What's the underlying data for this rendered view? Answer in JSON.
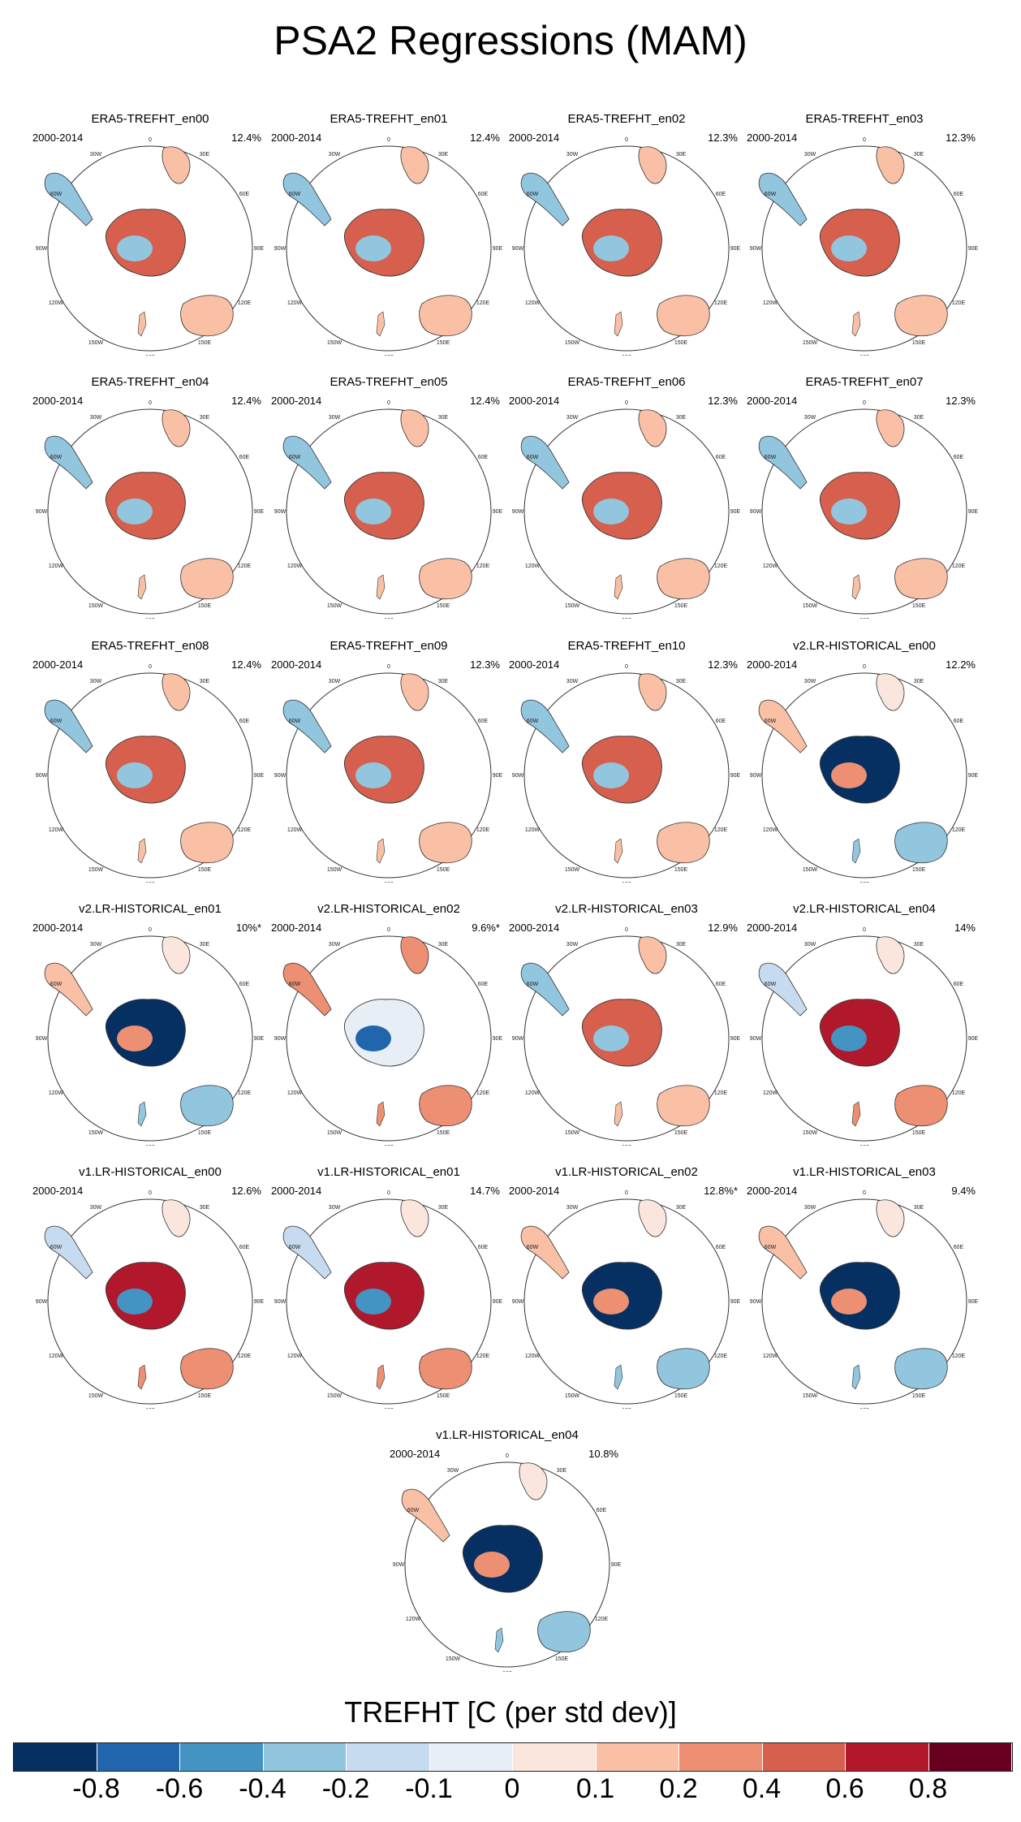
{
  "title": "PSA2 Regressions (MAM)",
  "period": "2000-2014",
  "panels": [
    {
      "title": "ERA5-TREFHT_en00",
      "pct": "12.4%",
      "style": "era"
    },
    {
      "title": "ERA5-TREFHT_en01",
      "pct": "12.4%",
      "style": "era"
    },
    {
      "title": "ERA5-TREFHT_en02",
      "pct": "12.3%",
      "style": "era"
    },
    {
      "title": "ERA5-TREFHT_en03",
      "pct": "12.3%",
      "style": "era"
    },
    {
      "title": "ERA5-TREFHT_en04",
      "pct": "12.4%",
      "style": "era"
    },
    {
      "title": "ERA5-TREFHT_en05",
      "pct": "12.4%",
      "style": "era"
    },
    {
      "title": "ERA5-TREFHT_en06",
      "pct": "12.3%",
      "style": "era"
    },
    {
      "title": "ERA5-TREFHT_en07",
      "pct": "12.3%",
      "style": "era"
    },
    {
      "title": "ERA5-TREFHT_en08",
      "pct": "12.4%",
      "style": "era"
    },
    {
      "title": "ERA5-TREFHT_en09",
      "pct": "12.3%",
      "style": "era"
    },
    {
      "title": "ERA5-TREFHT_en10",
      "pct": "12.3%",
      "style": "era"
    },
    {
      "title": "v2.LR-HISTORICAL_en00",
      "pct": "12.2%",
      "style": "cold"
    },
    {
      "title": "v2.LR-HISTORICAL_en01",
      "pct": "10%*",
      "style": "cold"
    },
    {
      "title": "v2.LR-HISTORICAL_en02",
      "pct": "9.6%*",
      "style": "warmcoast"
    },
    {
      "title": "v2.LR-HISTORICAL_en03",
      "pct": "12.9%",
      "style": "era"
    },
    {
      "title": "v2.LR-HISTORICAL_en04",
      "pct": "14%",
      "style": "mixed"
    },
    {
      "title": "v1.LR-HISTORICAL_en00",
      "pct": "12.6%",
      "style": "mixed"
    },
    {
      "title": "v1.LR-HISTORICAL_en01",
      "pct": "14.7%",
      "style": "mixed"
    },
    {
      "title": "v1.LR-HISTORICAL_en02",
      "pct": "12.8%*",
      "style": "cold"
    },
    {
      "title": "v1.LR-HISTORICAL_en03",
      "pct": "9.4%",
      "style": "cold"
    },
    {
      "title": "v1.LR-HISTORICAL_en04",
      "pct": "10.8%",
      "style": "cold"
    }
  ],
  "lon_labels": [
    "0",
    "30E",
    "60E",
    "90E",
    "120E",
    "150E",
    "180",
    "150W",
    "120W",
    "90W",
    "60W",
    "30W"
  ],
  "colorbar": {
    "title": "TREFHT [C (per std dev)]",
    "colors": [
      "#053061",
      "#2166ac",
      "#4393c3",
      "#92c5de",
      "#c6dbef",
      "#e8eef5",
      "#fbe6de",
      "#f9c0a6",
      "#ec8f72",
      "#d6604d",
      "#b2182b",
      "#67001f"
    ],
    "labels": [
      "-0.8",
      "-0.6",
      "-0.4",
      "-0.2",
      "-0.1",
      "0",
      "0.1",
      "0.2",
      "0.4",
      "0.6",
      "0.8"
    ]
  }
}
